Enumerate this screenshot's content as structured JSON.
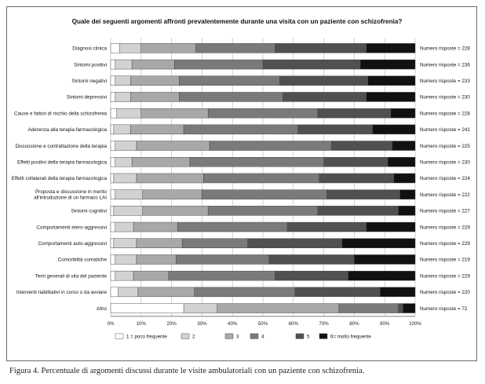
{
  "caption": "Figura 4. Percentuale di argomenti discussi durante le visite ambulatoriali con un paziente con schizofrenia.",
  "colors": [
    "#ffffff",
    "#d2d2d2",
    "#a8a8a8",
    "#7a7a7a",
    "#505050",
    "#111111"
  ],
  "chart_data": {
    "type": "bar",
    "orientation": "horizontal",
    "stacked": "percent",
    "title": "Quale dei seguenti argomenti affronti prevalentemente durante una visita con un paziente con schizofrenia?",
    "xlim": [
      0,
      100
    ],
    "x_ticks": [
      "0%",
      "10%",
      "20%",
      "30%",
      "40%",
      "50%",
      "60%",
      "70%",
      "80%",
      "90%",
      "100%"
    ],
    "legend_position": "bottom",
    "series_names": [
      "1 = poco frequente",
      "2",
      "3",
      "4",
      "5",
      "6= molto frequente"
    ],
    "categories": [
      {
        "label": [
          "Diagnosi clinica"
        ],
        "n_label": "Numero risposte = 228",
        "values": [
          3,
          7,
          18,
          26,
          30,
          16
        ]
      },
      {
        "label": [
          "Sintomi positivi"
        ],
        "n_label": "Numero risposte = 236",
        "values": [
          1.5,
          5.5,
          14,
          29,
          32,
          18
        ]
      },
      {
        "label": [
          "Sintomi negativi"
        ],
        "n_label": "Numero risposte = 233",
        "values": [
          1.5,
          5,
          16,
          33,
          29,
          15.5
        ]
      },
      {
        "label": [
          "Sintomi depressivi"
        ],
        "n_label": "Numero risposte = 230",
        "values": [
          1.5,
          5,
          16,
          34,
          27.5,
          16
        ]
      },
      {
        "label": [
          "Cause e fattori di rischio della schizofrenia"
        ],
        "n_label": "Numero risposte = 228",
        "values": [
          2,
          8,
          22,
          36,
          24,
          8
        ]
      },
      {
        "label": [
          "Aderenza alla terapia farmacologica"
        ],
        "n_label": "Numero risposte = 241",
        "values": [
          1,
          5.5,
          17.5,
          37.5,
          24.5,
          14
        ]
      },
      {
        "label": [
          "Discussione e contrattazione della terapia"
        ],
        "n_label": "Numero risposte = 225",
        "values": [
          1.5,
          7,
          24,
          40,
          20,
          7.5
        ]
      },
      {
        "label": [
          "Effetti positivi della terapia farmacologica"
        ],
        "n_label": "Numero risposte = 230",
        "values": [
          1.5,
          5.5,
          19,
          44,
          21,
          9
        ]
      },
      {
        "label": [
          "Effetti collaterali della terapia farmacologica"
        ],
        "n_label": "Numero risposte = 224",
        "values": [
          1,
          7.5,
          22,
          38,
          24.5,
          7
        ]
      },
      {
        "label": [
          "Proposta e discussione in merito",
          "all'introduzione di un farmaco LAI"
        ],
        "n_label": "Numero risposte = 222",
        "values": [
          1.5,
          9,
          19.5,
          41,
          24,
          5
        ]
      },
      {
        "label": [
          "Sintomi cognitivi"
        ],
        "n_label": "Numero risposte = 227",
        "values": [
          1,
          9.5,
          21.5,
          36,
          26.5,
          5.5
        ]
      },
      {
        "label": [
          "Comportamenti etero-aggressivi"
        ],
        "n_label": "Numero risposte = 229",
        "values": [
          1.5,
          6,
          14.5,
          36,
          26,
          16
        ]
      },
      {
        "label": [
          "Comportamenti auto-aggressivi"
        ],
        "n_label": "Numero risposte = 229",
        "values": [
          1,
          7.5,
          15,
          21.5,
          31,
          24
        ]
      },
      {
        "label": [
          "Comorbilità somatiche"
        ],
        "n_label": "Numero risposte = 219",
        "values": [
          1.5,
          7,
          13,
          30.5,
          28,
          20
        ]
      },
      {
        "label": [
          "Temi generali di vita del paziente"
        ],
        "n_label": "Numero risposte = 229",
        "values": [
          1.5,
          6,
          11.5,
          35,
          24,
          22
        ]
      },
      {
        "label": [
          "Interventi riabilitativi in corso o da avviare"
        ],
        "n_label": "Numero risposte = 220",
        "values": [
          2.5,
          6.5,
          18.5,
          33,
          28,
          11.5
        ]
      },
      {
        "label": [
          "Altro"
        ],
        "n_label": "Numero risposte = 72",
        "values": [
          24,
          11,
          40,
          19.5,
          1.5,
          4
        ]
      }
    ]
  }
}
